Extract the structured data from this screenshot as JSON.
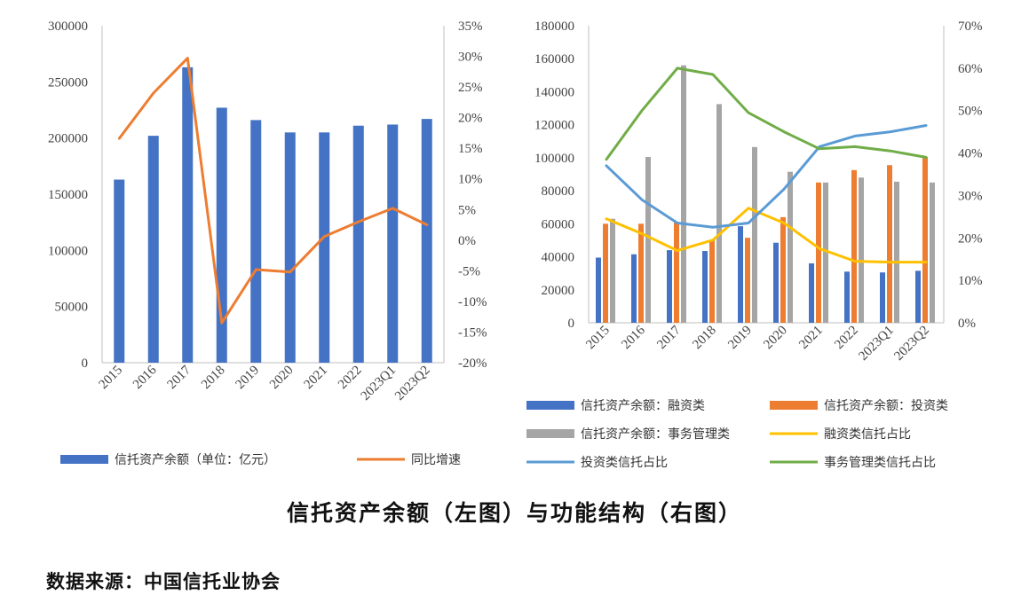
{
  "chart_data": [
    {
      "type": "bar+line",
      "title": "",
      "categories": [
        "2015",
        "2016",
        "2017",
        "2018",
        "2019",
        "2020",
        "2021",
        "2022",
        "2023Q1",
        "2023Q2"
      ],
      "series": [
        {
          "name": "信托资产余额（单位：亿元）",
          "kind": "bar",
          "axis": "left",
          "color": "#4472C4",
          "values": [
            163000,
            202000,
            263000,
            227000,
            216000,
            205000,
            205000,
            211000,
            212000,
            217000
          ]
        },
        {
          "name": "同比增速",
          "kind": "line",
          "axis": "right",
          "color": "#ED7D31",
          "values": [
            16.6,
            24.0,
            29.7,
            -13.5,
            -4.8,
            -5.2,
            0.6,
            3.0,
            5.2,
            2.5
          ]
        }
      ],
      "y_left": {
        "min": 0,
        "max": 300000,
        "step": 50000,
        "ticks": [
          "0",
          "50000",
          "100000",
          "150000",
          "200000",
          "250000",
          "300000"
        ]
      },
      "y_right": {
        "min": -20,
        "max": 35,
        "step": 5,
        "ticks": [
          "-20%",
          "-15%",
          "-10%",
          "-5%",
          "0%",
          "5%",
          "10%",
          "15%",
          "20%",
          "25%",
          "30%",
          "35%"
        ]
      },
      "legend_position": "bottom"
    },
    {
      "type": "bar+line",
      "title": "",
      "categories": [
        "2015",
        "2016",
        "2017",
        "2018",
        "2019",
        "2020",
        "2021",
        "2022",
        "2023Q1",
        "2023Q2"
      ],
      "series": [
        {
          "name": "信托资产余额：融资类",
          "kind": "bar",
          "axis": "left",
          "color": "#4472C4",
          "values": [
            39500,
            41500,
            44000,
            43500,
            58500,
            48500,
            36000,
            31000,
            30500,
            31500
          ]
        },
        {
          "name": "信托资产余额：投资类",
          "kind": "bar",
          "axis": "left",
          "color": "#ED7D31",
          "values": [
            60000,
            60000,
            61000,
            50000,
            51500,
            64000,
            85000,
            92500,
            95500,
            100500
          ]
        },
        {
          "name": "信托资产余额：事务管理类",
          "kind": "bar",
          "axis": "left",
          "color": "#A5A5A5",
          "values": [
            63000,
            100500,
            156000,
            132500,
            106500,
            91500,
            85000,
            88000,
            85500,
            85000
          ]
        },
        {
          "name": "融资类信托占比",
          "kind": "line",
          "axis": "right",
          "color": "#FFC000",
          "values": [
            24.5,
            21.0,
            17.0,
            19.5,
            27.0,
            23.5,
            17.5,
            14.5,
            14.3,
            14.3
          ]
        },
        {
          "name": "投资类信托占比",
          "kind": "line",
          "axis": "right",
          "color": "#5B9BD5",
          "values": [
            37.0,
            29.0,
            23.5,
            22.5,
            23.5,
            31.5,
            41.5,
            44.0,
            45.0,
            46.5
          ]
        },
        {
          "name": "事务管理类信托占比",
          "kind": "line",
          "axis": "right",
          "color": "#70AD47",
          "values": [
            38.5,
            50.0,
            60.0,
            58.5,
            49.5,
            45.0,
            41.0,
            41.5,
            40.5,
            39.0
          ]
        }
      ],
      "y_left": {
        "min": 0,
        "max": 180000,
        "step": 20000,
        "ticks": [
          "0",
          "20000",
          "40000",
          "60000",
          "80000",
          "100000",
          "120000",
          "140000",
          "160000",
          "180000"
        ]
      },
      "y_right": {
        "min": 0,
        "max": 70,
        "step": 10,
        "ticks": [
          "0%",
          "10%",
          "20%",
          "30%",
          "40%",
          "50%",
          "60%",
          "70%"
        ]
      },
      "legend_position": "bottom"
    }
  ],
  "caption": "信托资产余额（左图）与功能结构（右图）",
  "source": "数据来源：中国信托业协会"
}
